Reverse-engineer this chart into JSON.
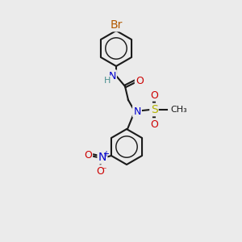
{
  "bg_color": "#ebebeb",
  "bond_color": "#1a1a1a",
  "figsize": [
    3.0,
    3.0
  ],
  "dpi": 100,
  "colors": {
    "Br": "#b35900",
    "N": "#0000cc",
    "O": "#cc0000",
    "S": "#b3b300",
    "H": "#4a9090",
    "C": "#1a1a1a",
    "bond": "#1a1a1a"
  },
  "font_size": 9,
  "bond_width": 1.5
}
